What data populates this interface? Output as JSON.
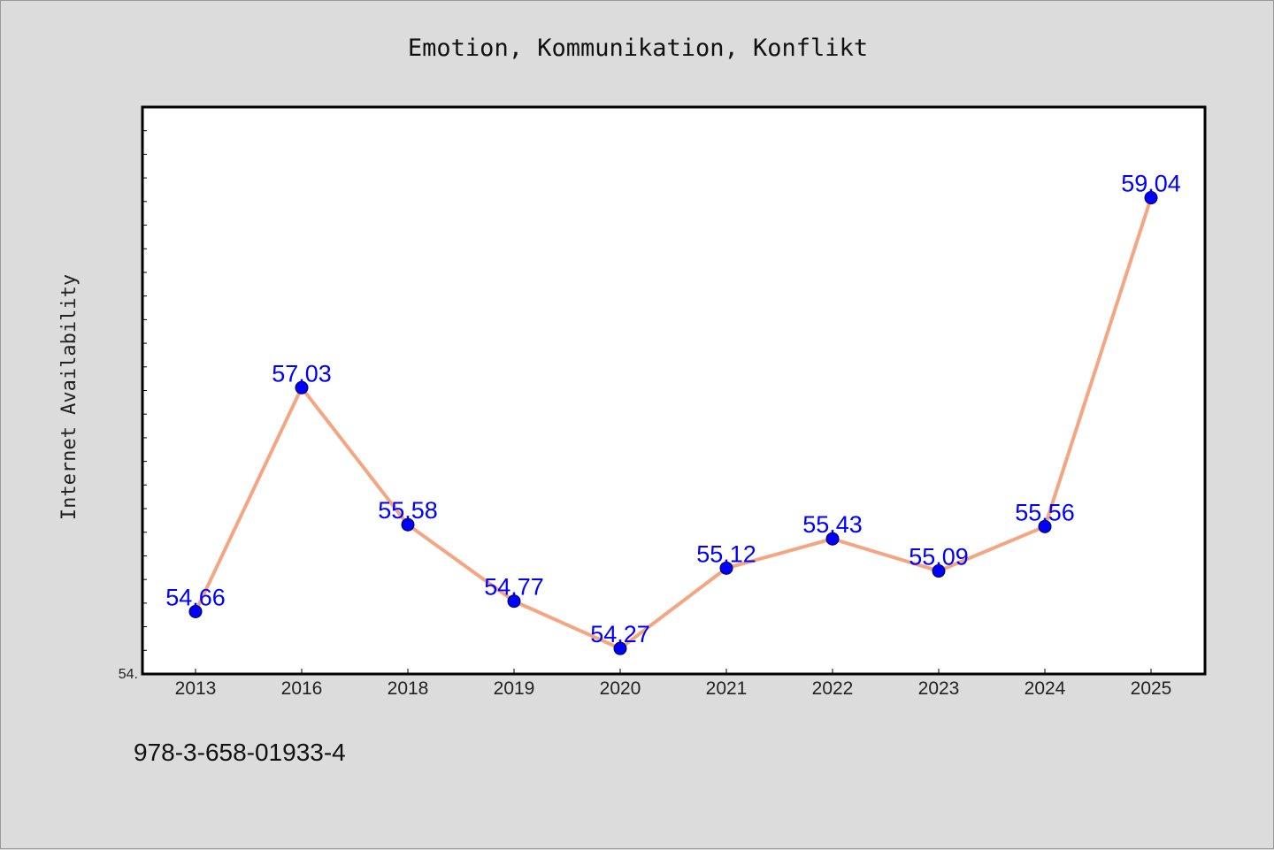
{
  "chart_data": {
    "type": "line",
    "title": "Emotion, Kommunikation, Konflikt",
    "ylabel": "Internet Availability",
    "xlabel": "",
    "ymin_label": "54.",
    "categories": [
      "2013",
      "2016",
      "2018",
      "2019",
      "2020",
      "2021",
      "2022",
      "2023",
      "2024",
      "2025"
    ],
    "series": [
      {
        "values": [
          54.66,
          57.03,
          55.58,
          54.77,
          54.27,
          55.12,
          55.43,
          55.09,
          55.56,
          59.04
        ],
        "labels": [
          "54.66",
          "57.03",
          "55.58",
          "54.77",
          "54.27",
          "55.12",
          "55.43",
          "55.09",
          "55.56",
          "59.04"
        ]
      }
    ],
    "ylim": [
      54.0,
      60.0
    ],
    "grid": false,
    "legend": "none",
    "line_color": "#f4a582",
    "marker_color": "#0000ff",
    "label_color": "#0000ff"
  },
  "footer": {
    "isbn": "978-3-658-01933-4"
  }
}
